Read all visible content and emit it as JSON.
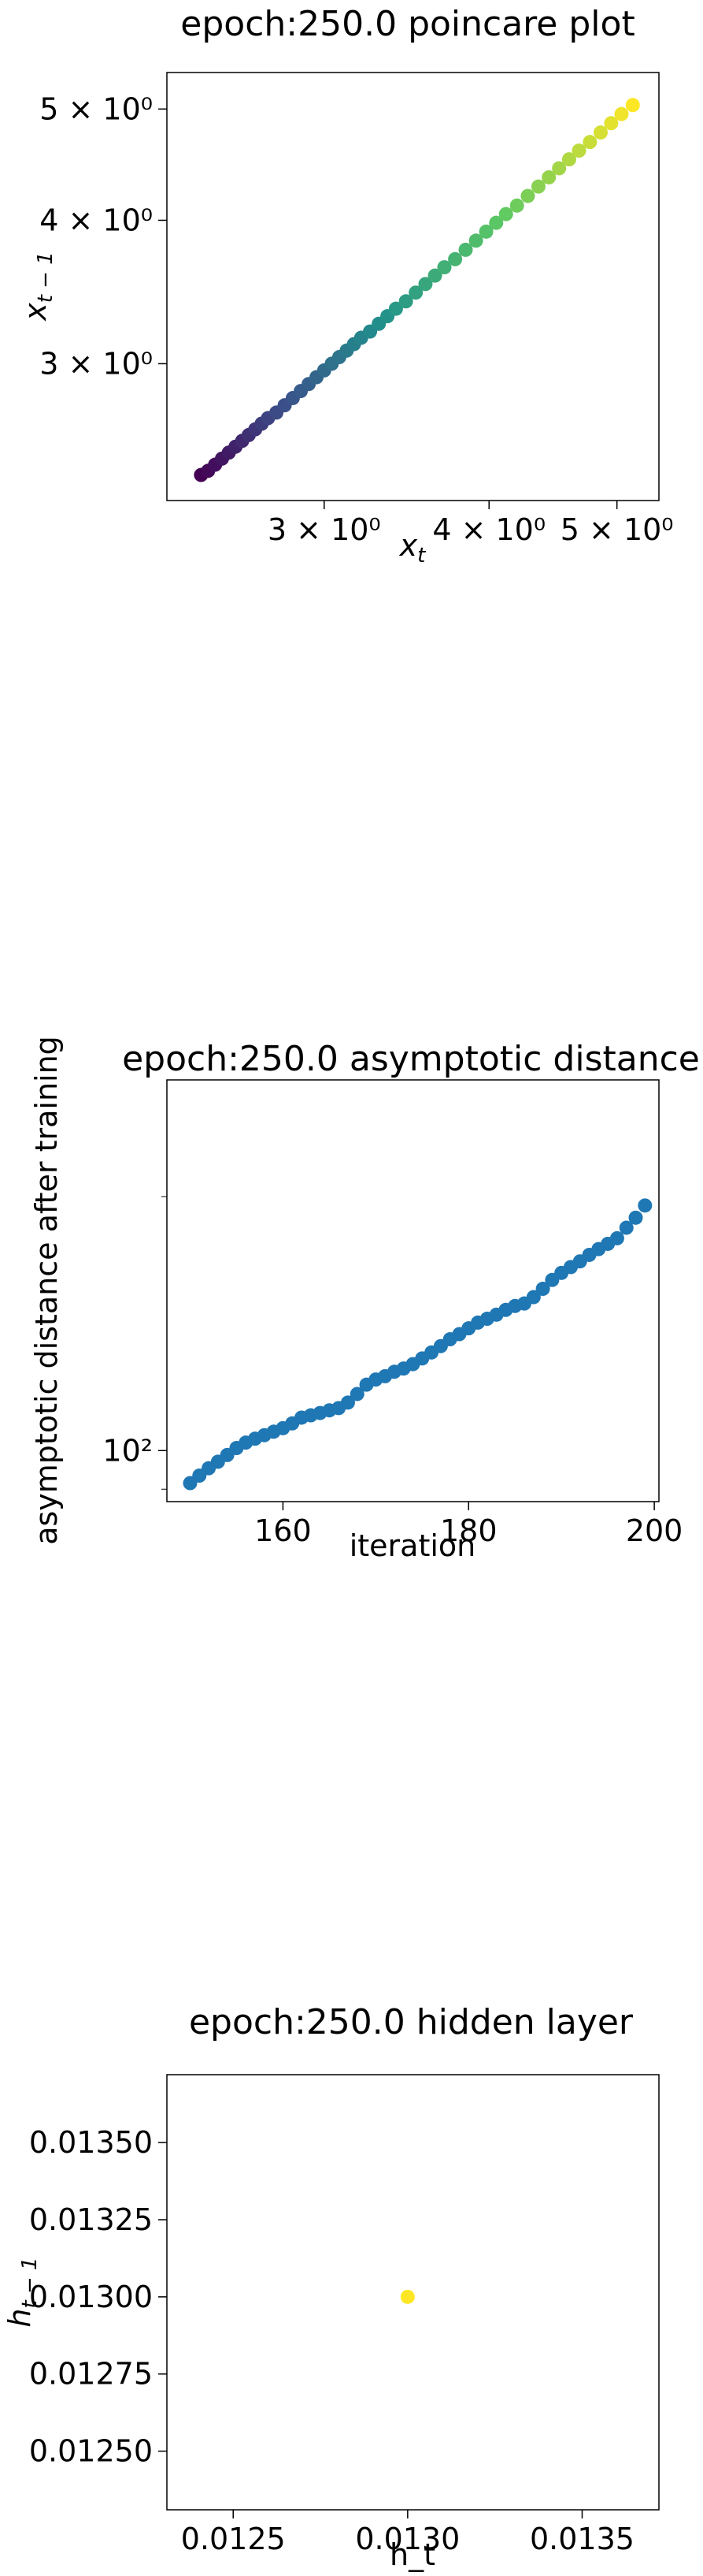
{
  "chart_data": [
    {
      "type": "scatter",
      "title": "epoch:250.0 poincare plot",
      "xlabel": "x_t",
      "ylabel": "x_{t-1}",
      "xscale": "log",
      "yscale": "log",
      "xlim": [
        2.28,
        5.38
      ],
      "ylim": [
        2.28,
        5.38
      ],
      "xticks": [
        {
          "v": 3,
          "label": "3 × 10⁰"
        },
        {
          "v": 4,
          "label": "4 × 10⁰"
        },
        {
          "v": 5,
          "label": "5 × 10⁰"
        }
      ],
      "yticks": [
        {
          "v": 3,
          "label": "3 × 10⁰"
        },
        {
          "v": 4,
          "label": "4 × 10⁰"
        },
        {
          "v": 5,
          "label": "5 × 10⁰"
        }
      ],
      "colormap": "viridis",
      "grid": false,
      "x": [
        2.42,
        2.45,
        2.48,
        2.51,
        2.54,
        2.57,
        2.6,
        2.63,
        2.66,
        2.69,
        2.72,
        2.76,
        2.8,
        2.84,
        2.88,
        2.92,
        2.96,
        3.0,
        3.04,
        3.08,
        3.12,
        3.16,
        3.2,
        3.25,
        3.3,
        3.35,
        3.4,
        3.46,
        3.52,
        3.58,
        3.64,
        3.7,
        3.77,
        3.84,
        3.91,
        3.98,
        4.05,
        4.12,
        4.2,
        4.28,
        4.36,
        4.44,
        4.52,
        4.6,
        4.68,
        4.77,
        4.86,
        4.95,
        5.04,
        5.14
      ],
      "y": [
        2.4,
        2.42,
        2.45,
        2.48,
        2.51,
        2.54,
        2.57,
        2.6,
        2.63,
        2.66,
        2.69,
        2.72,
        2.76,
        2.8,
        2.84,
        2.88,
        2.92,
        2.96,
        3.0,
        3.04,
        3.08,
        3.12,
        3.16,
        3.2,
        3.25,
        3.3,
        3.35,
        3.4,
        3.46,
        3.52,
        3.58,
        3.64,
        3.7,
        3.77,
        3.84,
        3.91,
        3.98,
        4.05,
        4.12,
        4.2,
        4.28,
        4.36,
        4.44,
        4.52,
        4.6,
        4.68,
        4.77,
        4.86,
        4.95,
        5.04
      ]
    },
    {
      "type": "scatter",
      "title": "epoch:250.0 asymptotic distance",
      "xlabel": "iteration",
      "ylabel": "asymptotic distance after training",
      "yscale": "log",
      "xlim": [
        147.5,
        200.5
      ],
      "ylim": [
        87,
        275
      ],
      "xticks": [
        {
          "v": 160,
          "label": "160"
        },
        {
          "v": 180,
          "label": "180"
        },
        {
          "v": 200,
          "label": "200"
        }
      ],
      "yticks": [
        {
          "v": 100,
          "label": "10²"
        }
      ],
      "color": "#1f77b4",
      "grid": false,
      "x": [
        150,
        151,
        152,
        153,
        154,
        155,
        156,
        157,
        158,
        159,
        160,
        161,
        162,
        163,
        164,
        165,
        166,
        167,
        168,
        169,
        170,
        171,
        172,
        173,
        174,
        175,
        176,
        177,
        178,
        179,
        180,
        181,
        182,
        183,
        184,
        185,
        186,
        187,
        188,
        189,
        190,
        191,
        192,
        193,
        194,
        195,
        196,
        197,
        198,
        199
      ],
      "y": [
        91.5,
        93.4,
        95.3,
        97.0,
        98.8,
        100.7,
        102.2,
        103.3,
        104.3,
        105.3,
        106.3,
        107.7,
        109.4,
        110.1,
        110.8,
        111.6,
        112.3,
        114.0,
        116.7,
        119.7,
        121.4,
        122.5,
        124.0,
        125.1,
        126.6,
        128.6,
        130.7,
        133.0,
        135.5,
        137.4,
        139.6,
        141.8,
        143.3,
        144.9,
        146.8,
        148.4,
        149.4,
        152.0,
        155.5,
        159.3,
        162.4,
        165.0,
        167.6,
        170.6,
        173.3,
        175.8,
        178.5,
        183.7,
        188.8,
        195.2
      ]
    },
    {
      "type": "scatter",
      "title": "epoch:250.0 hidden layer",
      "xlabel": "h_t",
      "ylabel": "h_{t-1}",
      "xlim": [
        0.01231,
        0.01372
      ],
      "ylim": [
        0.01231,
        0.01372
      ],
      "xticks": [
        {
          "v": 0.0125,
          "label": "0.0125"
        },
        {
          "v": 0.013,
          "label": "0.0130"
        },
        {
          "v": 0.0135,
          "label": "0.0135"
        }
      ],
      "yticks": [
        {
          "v": 0.0125,
          "label": "0.01250"
        },
        {
          "v": 0.01275,
          "label": "0.01275"
        },
        {
          "v": 0.013,
          "label": "0.01300"
        },
        {
          "v": 0.01325,
          "label": "0.01325"
        },
        {
          "v": 0.0135,
          "label": "0.01350"
        }
      ],
      "color": "#fde725",
      "grid": false,
      "x": [
        0.013
      ],
      "y": [
        0.013
      ]
    }
  ]
}
